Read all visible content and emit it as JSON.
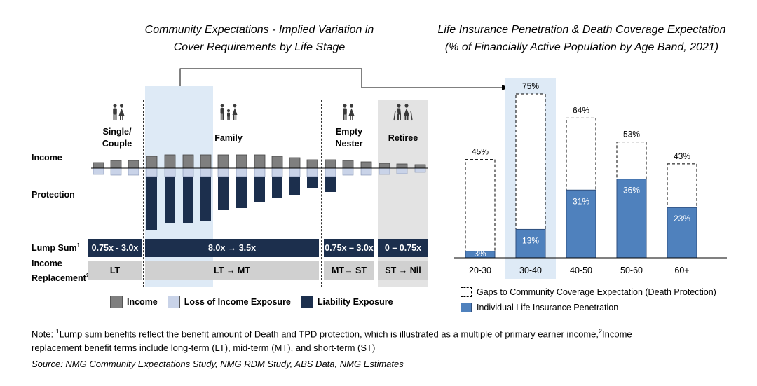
{
  "left_panel": {
    "title_line1": "Community Expectations - Implied Variation in",
    "title_line2": "Cover Requirements by Life Stage",
    "row_labels": {
      "income": "Income",
      "protection": "Protection",
      "lump_sum": "Lump Sum",
      "lump_sum_sup": "1",
      "income_replacement_1": "Income",
      "income_replacement_2": "Replacement",
      "income_replacement_sup": "2"
    },
    "stages": [
      {
        "name_line1": "Single/",
        "name_line2": "Couple",
        "lump_sum": "0.75x - 3.0x",
        "income_replacement": "LT",
        "icon": "couple-icon"
      },
      {
        "name_line1": "Family",
        "name_line2": "",
        "lump_sum": "8.0x → 3.5x",
        "income_replacement": "LT → MT",
        "icon": "family-icon"
      },
      {
        "name_line1": "Empty",
        "name_line2": "Nester",
        "lump_sum": "0.75x – 3.0x",
        "income_replacement": "MT→ ST",
        "icon": "couple-icon"
      },
      {
        "name_line1": "Retiree",
        "name_line2": "",
        "lump_sum": "0 – 0.75x",
        "income_replacement": "ST → Nil",
        "icon": "elderly-couple-icon"
      }
    ],
    "legend": {
      "income": "Income",
      "loss_of_income": "Loss of Income Exposure",
      "liability": "Liability Exposure"
    },
    "colors": {
      "income": "#7f7f7f",
      "loss_of_income": "#c9d3e8",
      "liability": "#1c2f4d"
    }
  },
  "right_panel": {
    "title_line1": "Life Insurance Penetration & Death Coverage Expectation",
    "title_line2": "(% of Financially Active Population by Age Band, 2021)",
    "legend": {
      "gap": "Gaps to Community Coverage Expectation (Death Protection)",
      "penetration": "Individual Life Insurance Penetration"
    },
    "colors": {
      "penetration": "#4f81bd",
      "highlight": "#deeaf6"
    }
  },
  "chart_data": {
    "type": "bar",
    "stacked": true,
    "categories": [
      "20-30",
      "30-40",
      "40-50",
      "50-60",
      "60+"
    ],
    "series": [
      {
        "name": "Individual Life Insurance Penetration",
        "values": [
          3,
          13,
          31,
          36,
          23
        ],
        "labels": [
          "3%",
          "13%",
          "31%",
          "36%",
          "23%"
        ]
      },
      {
        "name": "Gaps to Community Coverage Expectation (Death Protection)",
        "values": [
          42,
          62,
          33,
          17,
          20
        ]
      }
    ],
    "totals": [
      45,
      75,
      64,
      53,
      43
    ],
    "total_labels": [
      "45%",
      "75%",
      "64%",
      "53%",
      "43%"
    ],
    "highlight_category": "30-40",
    "ylim": [
      0,
      80
    ]
  },
  "footer": {
    "note_prefix": "Note: ",
    "note_sup1": "1",
    "note_part1": "Lump sum benefits reflect the benefit amount of Death and TPD protection, which is illustrated as a multiple of primary earner income,",
    "note_sup2": "2",
    "note_part2": "Income",
    "note_line2": "replacement benefit terms include long-term (LT), mid-term (MT), and short-term (ST)",
    "source": "Source: NMG Community Expectations Study, NMG RDM Study, ABS Data, NMG Estimates"
  }
}
